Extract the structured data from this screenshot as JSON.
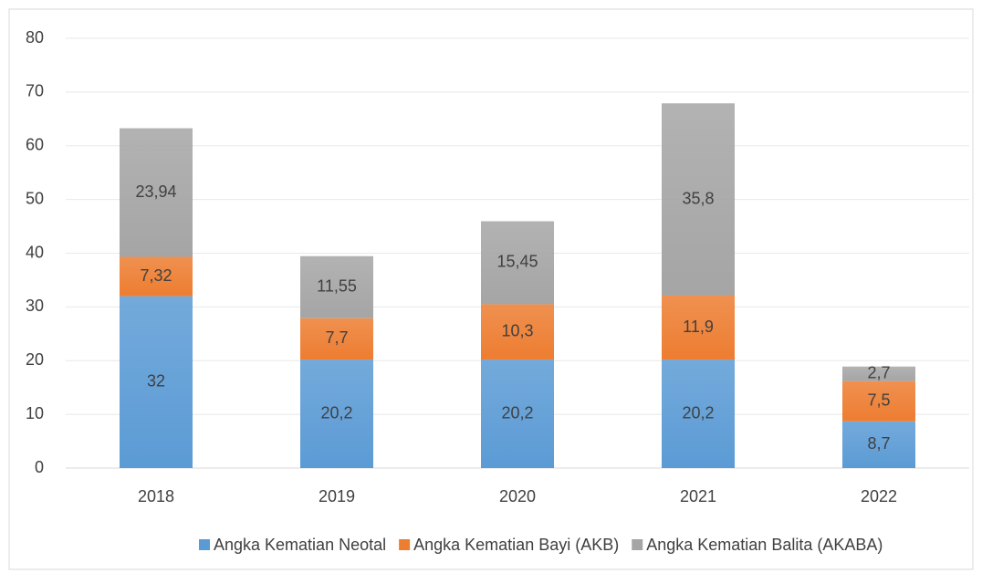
{
  "chart_data": {
    "type": "stacked_bar",
    "categories": [
      "2018",
      "2019",
      "2020",
      "2021",
      "2022"
    ],
    "series": [
      {
        "name": "Angka Kematian Neotal",
        "color": "#5b9bd5",
        "values": [
          32,
          20.2,
          20.2,
          20.2,
          8.7
        ],
        "value_labels": [
          "32",
          "20,2",
          "20,2",
          "20,2",
          "8,7"
        ]
      },
      {
        "name": "Angka Kematian Bayi (AKB)",
        "color": "#ed7d31",
        "values": [
          7.32,
          7.7,
          10.3,
          11.9,
          7.5
        ],
        "value_labels": [
          "7,32",
          "7,7",
          "10,3",
          "11,9",
          "7,5"
        ]
      },
      {
        "name": "Angka Kematian Balita (AKABA)",
        "color": "#a5a5a5",
        "values": [
          23.94,
          11.55,
          15.45,
          35.8,
          2.7
        ],
        "value_labels": [
          "23,94",
          "11,55",
          "15,45",
          "35,8",
          "2,7"
        ]
      }
    ],
    "ylim": [
      0,
      80
    ],
    "yticks": [
      0,
      10,
      20,
      30,
      40,
      50,
      60,
      70,
      80
    ],
    "grid": true,
    "legend": "bottom"
  }
}
